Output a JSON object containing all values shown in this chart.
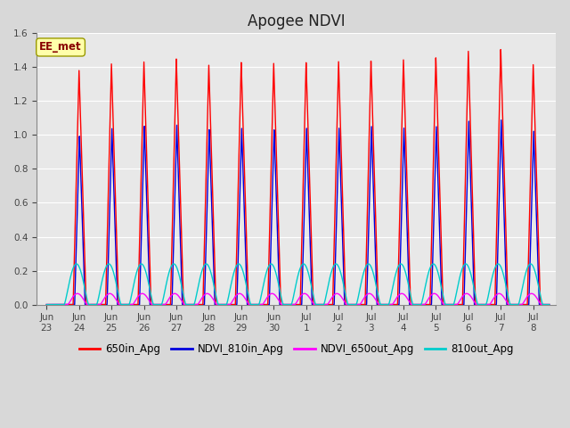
{
  "title": "Apogee NDVI",
  "ylim": [
    0.0,
    1.6
  ],
  "yticks": [
    0.0,
    0.2,
    0.4,
    0.6,
    0.8,
    1.0,
    1.2,
    1.4,
    1.6
  ],
  "background_color": "#d8d8d8",
  "plot_bg_color": "#e8e8e8",
  "colors": {
    "650in_Apg": "#ff0000",
    "NDVI_810in_Apg": "#0000dd",
    "NDVI_650out_Apg": "#ff00ff",
    "810out_Apg": "#00cccc"
  },
  "annotation_text": "EE_met",
  "annotation_color": "#880000",
  "annotation_bg": "#ffffaa",
  "title_fontsize": 12,
  "grid_color": "#ffffff",
  "red_peaks": [
    1.39,
    1.42,
    1.44,
    1.45,
    1.42,
    1.43,
    1.43,
    1.43,
    1.44,
    1.44,
    1.45,
    1.46,
    1.5,
    1.51,
    1.42
  ],
  "blue_peaks": [
    1.0,
    1.04,
    1.06,
    1.06,
    1.04,
    1.04,
    1.04,
    1.04,
    1.05,
    1.05,
    1.05,
    1.05,
    1.09,
    1.09,
    1.03
  ],
  "tick_labels": [
    "Jun 23",
    "Jun 24",
    "Jun 25",
    "Jun 26",
    "Jun 27",
    "Jun 28",
    "Jun 29",
    "Jun 30",
    "Jul 1",
    "Jul 2",
    "Jul 3",
    "Jul 4",
    "Jul 5",
    "Jul 6",
    "Jul 7",
    "Jul 8"
  ],
  "tick_label_prefix": "Jun"
}
